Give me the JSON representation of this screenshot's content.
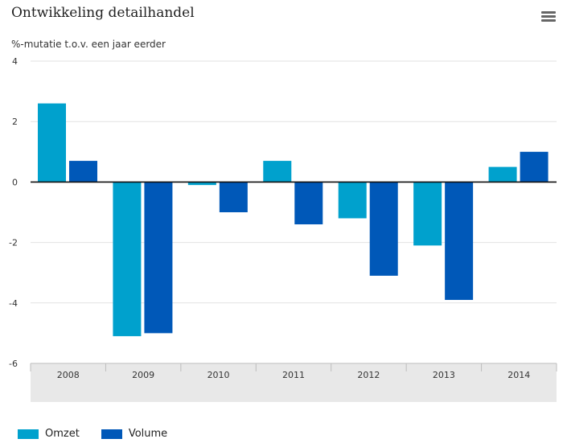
{
  "title": "Ontwikkeling detailhandel",
  "menu_icon": "hamburger-menu-icon",
  "chart_data": {
    "type": "bar",
    "title": "Ontwikkeling detailhandel",
    "ylabel": "%-mutatie t.o.v. een jaar eerder",
    "xlabel": "",
    "categories": [
      "2008",
      "2009",
      "2010",
      "2011",
      "2012",
      "2013",
      "2014"
    ],
    "series": [
      {
        "name": "Omzet",
        "color": "#00a1cd",
        "values": [
          2.6,
          -5.1,
          -0.1,
          0.7,
          -1.2,
          -2.1,
          0.5
        ]
      },
      {
        "name": "Volume",
        "color": "#0058b8",
        "values": [
          0.7,
          -5.0,
          -1.0,
          -1.4,
          -3.1,
          -3.9,
          1.0
        ]
      }
    ],
    "ylim": [
      -6,
      4
    ],
    "yticks": [
      4,
      2,
      0,
      -2,
      -4,
      -6
    ],
    "grid": true,
    "legend_position": "bottom-left"
  }
}
